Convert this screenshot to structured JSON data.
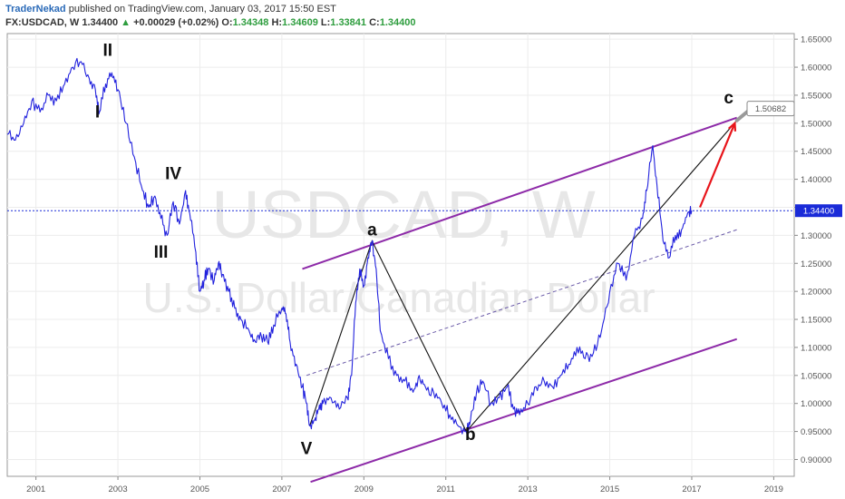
{
  "header": {
    "author": "TraderNekad",
    "published": "published on TradingView.com, January 03, 2017 15:50 EST",
    "symbol": "FX:USDCAD, W",
    "last": "1.34400",
    "arrow": "▲",
    "change": "+0.00029 (+0.02%)",
    "o_label": "O:",
    "o_value": "1.34348",
    "h_label": "H:",
    "h_value": "1.34609",
    "l_label": "L:",
    "l_value": "1.33841",
    "c_label": "C:",
    "c_value": "1.34400"
  },
  "watermark": {
    "symbol": "USDCAD, W",
    "name": "U.S. Dollar/Canadian Dollar"
  },
  "colors": {
    "price": "#2222dd",
    "channel": "#8d2aa8",
    "projection": "#e8141a",
    "last_price_bg": "#1a2bd8",
    "target_bg": "#8a8a8a"
  },
  "chart_data": {
    "type": "line",
    "x_ticks": [
      "2001",
      "2003",
      "2005",
      "2007",
      "2009",
      "2011",
      "2013",
      "2015",
      "2017",
      "2019"
    ],
    "y_ticks": [
      "1.65000",
      "1.60000",
      "1.55000",
      "1.50000",
      "1.45000",
      "1.40000",
      "1.35000",
      "1.30000",
      "1.25000",
      "1.20000",
      "1.15000",
      "1.10000",
      "1.05000",
      "1.00000",
      "0.95000",
      "0.90000"
    ],
    "ylim": [
      0.87,
      1.66
    ],
    "xlim": [
      2000.3,
      2019.5
    ],
    "last_price": "1.34400",
    "target_price": "1.50682",
    "series": [
      {
        "points": [
          [
            2000.3,
            1.48
          ],
          [
            2000.5,
            1.47
          ],
          [
            2000.7,
            1.5
          ],
          [
            2000.9,
            1.54
          ],
          [
            2001.1,
            1.52
          ],
          [
            2001.3,
            1.55
          ],
          [
            2001.5,
            1.54
          ],
          [
            2001.7,
            1.57
          ],
          [
            2001.9,
            1.6
          ],
          [
            2002.1,
            1.61
          ],
          [
            2002.3,
            1.58
          ],
          [
            2002.45,
            1.56
          ],
          [
            2002.55,
            1.52
          ],
          [
            2002.7,
            1.57
          ],
          [
            2002.85,
            1.59
          ],
          [
            2003.0,
            1.56
          ],
          [
            2003.2,
            1.5
          ],
          [
            2003.4,
            1.44
          ],
          [
            2003.6,
            1.38
          ],
          [
            2003.75,
            1.35
          ],
          [
            2003.9,
            1.37
          ],
          [
            2004.05,
            1.33
          ],
          [
            2004.2,
            1.3
          ],
          [
            2004.35,
            1.36
          ],
          [
            2004.5,
            1.32
          ],
          [
            2004.65,
            1.38
          ],
          [
            2004.75,
            1.34
          ],
          [
            2004.9,
            1.27
          ],
          [
            2005.0,
            1.2
          ],
          [
            2005.1,
            1.22
          ],
          [
            2005.2,
            1.24
          ],
          [
            2005.35,
            1.22
          ],
          [
            2005.45,
            1.25
          ],
          [
            2005.55,
            1.23
          ],
          [
            2005.7,
            1.2
          ],
          [
            2005.85,
            1.17
          ],
          [
            2006.0,
            1.15
          ],
          [
            2006.2,
            1.13
          ],
          [
            2006.35,
            1.11
          ],
          [
            2006.5,
            1.12
          ],
          [
            2006.65,
            1.11
          ],
          [
            2006.8,
            1.14
          ],
          [
            2007.0,
            1.17
          ],
          [
            2007.1,
            1.16
          ],
          [
            2007.2,
            1.11
          ],
          [
            2007.35,
            1.07
          ],
          [
            2007.5,
            1.03
          ],
          [
            2007.6,
            1.0
          ],
          [
            2007.68,
            0.96
          ],
          [
            2007.8,
            0.97
          ],
          [
            2007.9,
            0.99
          ],
          [
            2008.0,
            1.0
          ],
          [
            2008.2,
            1.01
          ],
          [
            2008.4,
            0.99
          ],
          [
            2008.6,
            1.01
          ],
          [
            2008.7,
            1.05
          ],
          [
            2008.8,
            1.18
          ],
          [
            2008.9,
            1.24
          ],
          [
            2009.0,
            1.21
          ],
          [
            2009.1,
            1.26
          ],
          [
            2009.2,
            1.29
          ],
          [
            2009.3,
            1.24
          ],
          [
            2009.4,
            1.13
          ],
          [
            2009.6,
            1.08
          ],
          [
            2009.8,
            1.05
          ],
          [
            2010.0,
            1.04
          ],
          [
            2010.2,
            1.02
          ],
          [
            2010.35,
            1.05
          ],
          [
            2010.5,
            1.03
          ],
          [
            2010.7,
            1.02
          ],
          [
            2010.9,
            1.0
          ],
          [
            2011.1,
            0.98
          ],
          [
            2011.3,
            0.96
          ],
          [
            2011.5,
            0.95
          ],
          [
            2011.6,
            0.97
          ],
          [
            2011.75,
            1.02
          ],
          [
            2011.9,
            1.04
          ],
          [
            2012.1,
            1.0
          ],
          [
            2012.3,
            1.01
          ],
          [
            2012.5,
            1.03
          ],
          [
            2012.65,
            0.99
          ],
          [
            2012.8,
            0.98
          ],
          [
            2013.0,
            1.0
          ],
          [
            2013.2,
            1.03
          ],
          [
            2013.4,
            1.04
          ],
          [
            2013.6,
            1.03
          ],
          [
            2013.8,
            1.05
          ],
          [
            2014.0,
            1.07
          ],
          [
            2014.2,
            1.1
          ],
          [
            2014.4,
            1.08
          ],
          [
            2014.6,
            1.09
          ],
          [
            2014.8,
            1.13
          ],
          [
            2015.0,
            1.2
          ],
          [
            2015.2,
            1.25
          ],
          [
            2015.4,
            1.22
          ],
          [
            2015.6,
            1.3
          ],
          [
            2015.8,
            1.33
          ],
          [
            2015.9,
            1.38
          ],
          [
            2016.05,
            1.46
          ],
          [
            2016.15,
            1.39
          ],
          [
            2016.3,
            1.29
          ],
          [
            2016.45,
            1.26
          ],
          [
            2016.6,
            1.3
          ],
          [
            2016.75,
            1.31
          ],
          [
            2016.9,
            1.34
          ],
          [
            2017.0,
            1.344
          ]
        ]
      }
    ],
    "annotations": [
      {
        "label": "I",
        "x": 2002.5,
        "y": 1.51
      },
      {
        "label": "II",
        "x": 2002.75,
        "y": 1.62
      },
      {
        "label": "III",
        "x": 2004.05,
        "y": 1.26
      },
      {
        "label": "IV",
        "x": 2004.35,
        "y": 1.4
      },
      {
        "label": "V",
        "x": 2007.6,
        "y": 0.91
      },
      {
        "label": "a",
        "x": 2009.2,
        "y": 1.3
      },
      {
        "label": "b",
        "x": 2011.6,
        "y": 0.935
      },
      {
        "label": "c",
        "x": 2017.9,
        "y": 1.535
      }
    ],
    "zigzag": [
      [
        2007.68,
        0.96
      ],
      [
        2009.2,
        1.29
      ],
      [
        2011.5,
        0.95
      ],
      [
        2018.1,
        1.505
      ]
    ],
    "channel_upper": [
      [
        2007.5,
        1.24
      ],
      [
        2018.1,
        1.51
      ]
    ],
    "channel_lower": [
      [
        2007.7,
        0.86
      ],
      [
        2018.1,
        1.115
      ]
    ],
    "dashed_mid": [
      [
        2007.6,
        1.05
      ],
      [
        2018.1,
        1.31
      ]
    ],
    "projection": [
      [
        2017.2,
        1.35
      ],
      [
        2018.05,
        1.5
      ]
    ]
  }
}
